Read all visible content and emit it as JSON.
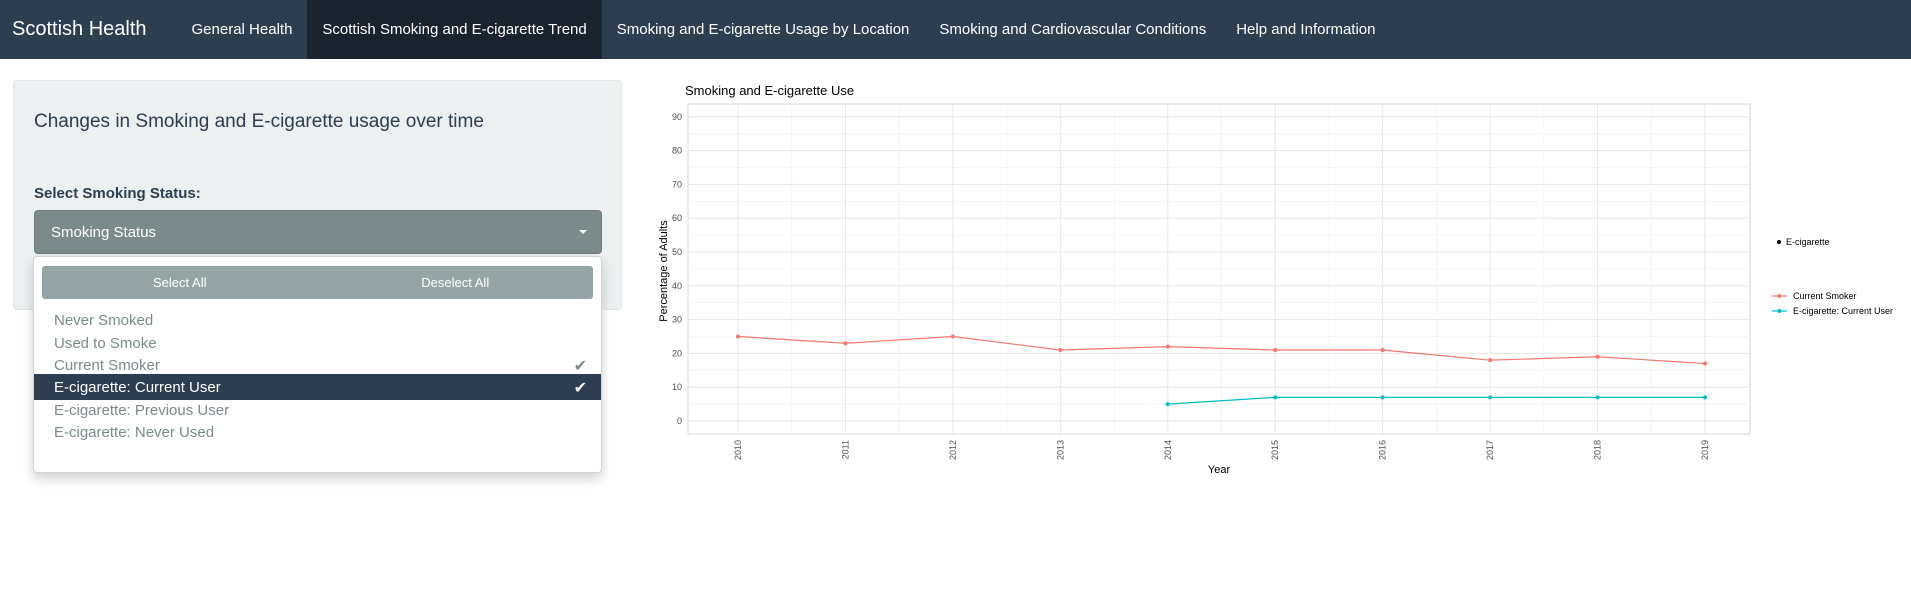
{
  "navbar": {
    "brand": "Scottish Health",
    "items": [
      {
        "label": "General Health"
      },
      {
        "label": "Scottish Smoking and E-cigarette Trend"
      },
      {
        "label": "Smoking and E-cigarette Usage by Location"
      },
      {
        "label": "Smoking and Cardiovascular Conditions"
      },
      {
        "label": "Help and Information"
      }
    ],
    "active_index": 1
  },
  "sidebar": {
    "title": "Changes in Smoking and E-cigarette usage over time",
    "select_label": "Select Smoking Status:",
    "select_button": "Smoking Status",
    "select_all": "Select All",
    "deselect_all": "Deselect All",
    "options": [
      {
        "label": "Never Smoked",
        "checked": false,
        "highlighted": false
      },
      {
        "label": "Used to Smoke",
        "checked": false,
        "highlighted": false
      },
      {
        "label": "Current Smoker",
        "checked": true,
        "highlighted": false
      },
      {
        "label": "E-cigarette: Current User",
        "checked": true,
        "highlighted": true
      },
      {
        "label": "E-cigarette: Previous User",
        "checked": false,
        "highlighted": false
      },
      {
        "label": "E-cigarette: Never Used",
        "checked": false,
        "highlighted": false
      }
    ]
  },
  "chart_data": {
    "type": "line",
    "title": "Smoking and E-cigarette Use",
    "xlabel": "Year",
    "ylabel": "Percentage of Adults",
    "ylim": [
      0,
      90
    ],
    "yticks": [
      0,
      10,
      20,
      30,
      40,
      50,
      60,
      70,
      80,
      90
    ],
    "x": [
      "2010",
      "2011",
      "2012",
      "2013",
      "2014",
      "2015",
      "2016",
      "2017",
      "2018",
      "2019"
    ],
    "grid": true,
    "legend_position": "right",
    "legend_title": "E-cigarette",
    "series": [
      {
        "name": "Current Smoker",
        "color": "#f8766d",
        "values": [
          25,
          23,
          25,
          21,
          22,
          21,
          21,
          18,
          19,
          17
        ]
      },
      {
        "name": "E-cigarette: Current User",
        "color": "#00bfc4",
        "values": [
          null,
          null,
          null,
          null,
          5,
          7,
          7,
          7,
          7,
          7
        ]
      }
    ]
  }
}
